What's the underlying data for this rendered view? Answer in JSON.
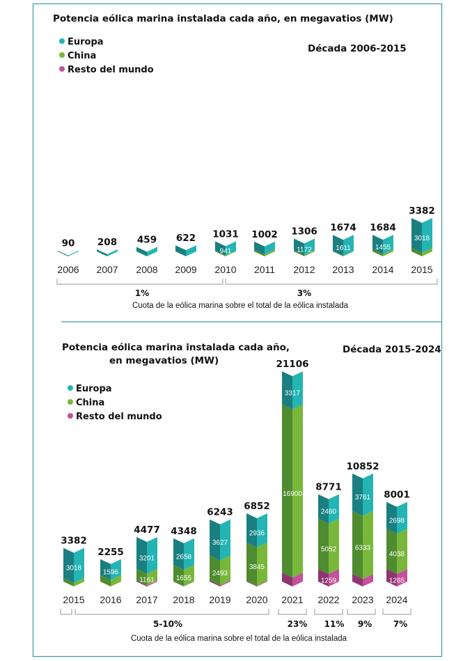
{
  "colors": {
    "europa": "#24b4b4",
    "europa_dark": "#1a7f80",
    "china": "#78b73a",
    "china_dark": "#4f8b2f",
    "resto": "#c5509b",
    "resto_dark": "#8f3571",
    "border": "#3c9c9c"
  },
  "chart_data": [
    {
      "type": "bar",
      "stacked": true,
      "title": "Potencia eólica marina instalada cada año, en megavatios (MW)",
      "subtitle": "Década 2006-2015",
      "legend": [
        "Europa",
        "China",
        "Resto del mundo"
      ],
      "legend_placement": "top-left",
      "categories": [
        "2006",
        "2007",
        "2008",
        "2009",
        "2010",
        "2011",
        "2012",
        "2013",
        "2014",
        "2015"
      ],
      "totals": [
        90,
        208,
        459,
        622,
        1031,
        1002,
        1306,
        1674,
        1684,
        3382
      ],
      "europa": [
        90,
        208,
        459,
        622,
        941,
        816,
        1172,
        1611,
        1455,
        3018
      ],
      "china": [
        null,
        null,
        null,
        null,
        null,
        null,
        null,
        null,
        null,
        null
      ],
      "resto": [
        null,
        null,
        null,
        null,
        null,
        null,
        null,
        null,
        null,
        null
      ],
      "europa_labeled": [
        false,
        false,
        false,
        false,
        true,
        true,
        true,
        true,
        true,
        true
      ],
      "shares": [
        {
          "label": "1%",
          "from": "2006",
          "to": "2010"
        },
        {
          "label": "3%",
          "from": "2011",
          "to": "2015"
        }
      ],
      "caption": "Cuota de la eólica marina sobre el total de la eólica instalada"
    },
    {
      "type": "bar",
      "stacked": true,
      "title_line1": "Potencia eólica marina instalada cada año,",
      "title_line2": "en megavatios (MW)",
      "subtitle": "Década 2015-2024",
      "legend": [
        "Europa",
        "China",
        "Resto del mundo"
      ],
      "legend_placement": "top-left",
      "categories": [
        "2015",
        "2016",
        "2017",
        "2018",
        "2019",
        "2020",
        "2021",
        "2022",
        "2023",
        "2024"
      ],
      "totals": [
        3382,
        2255,
        4477,
        4348,
        6243,
        6852,
        21106,
        8771,
        10852,
        8001
      ],
      "europa": [
        3018,
        1596,
        3201,
        2658,
        3627,
        2936,
        3317,
        2460,
        3761,
        2698
      ],
      "china": [
        null,
        null,
        1161,
        1655,
        2493,
        3845,
        16900,
        5052,
        6333,
        4038
      ],
      "resto": [
        null,
        null,
        null,
        null,
        null,
        null,
        null,
        1259,
        null,
        1265
      ],
      "shares": [
        {
          "label": "",
          "from": "2015",
          "to": "2015"
        },
        {
          "label": "5-10%",
          "from": "2016",
          "to": "2020"
        },
        {
          "label": "23%",
          "from": "2021",
          "to": "2021"
        },
        {
          "label": "11%",
          "from": "2022",
          "to": "2022"
        },
        {
          "label": "9%",
          "from": "2023",
          "to": "2023"
        },
        {
          "label": "7%",
          "from": "2024",
          "to": "2024"
        }
      ],
      "caption": "Cuota de la eólica marina sobre el total de la eólica instalada"
    }
  ]
}
